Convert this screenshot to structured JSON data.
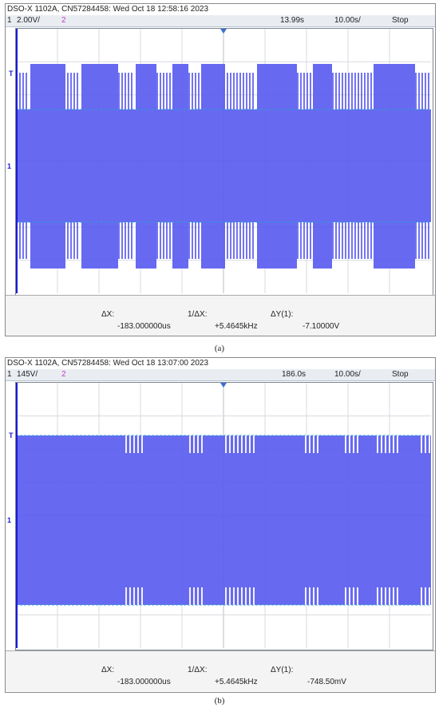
{
  "panels": [
    {
      "header": "DSO-X 1102A, CN57284458: Wed Oct 18 12:58:16 2023",
      "ch1_num": "1",
      "ch1_scale": "2.00V/",
      "ch2_num": "2",
      "timebase": "13.99s",
      "timescale": "10.00s/",
      "run_state": "Stop",
      "dx_label": "ΔX:",
      "dx_value": "-183.000000us",
      "inv_dx_label": "1/ΔX:",
      "inv_dx_value": "+5.4645kHz",
      "dy_label": "ΔY(1):",
      "dy_value": "-7.10000V",
      "caption": "(a)",
      "trace_color": "#5a5cf0",
      "bursts": [
        [
          18,
          62
        ],
        [
          82,
          128
        ],
        [
          150,
          176
        ],
        [
          196,
          216
        ],
        [
          232,
          262
        ],
        [
          302,
          352
        ],
        [
          372,
          396
        ],
        [
          448,
          500
        ]
      ]
    },
    {
      "header": "DSO-X 1102A, CN57284458: Wed Oct 18 13:07:00 2023",
      "ch1_num": "1",
      "ch1_scale": "145V/",
      "ch2_num": "2",
      "timebase": "186.0s",
      "timescale": "10.00s/",
      "run_state": "Stop",
      "dx_label": "ΔX:",
      "dx_value": "-183.000000us",
      "inv_dx_label": "1/ΔX:",
      "inv_dx_value": "+5.4645kHz",
      "dy_label": "ΔY(1):",
      "dy_value": "-748.50mV",
      "caption": "(b)",
      "trace_color": "#5a5cf0",
      "bursts": [
        [
          0,
          132
        ],
        [
          156,
          214
        ],
        [
          234,
          256
        ],
        [
          300,
          356
        ],
        [
          378,
          406
        ],
        [
          428,
          450
        ],
        [
          476,
          505
        ]
      ]
    }
  ]
}
